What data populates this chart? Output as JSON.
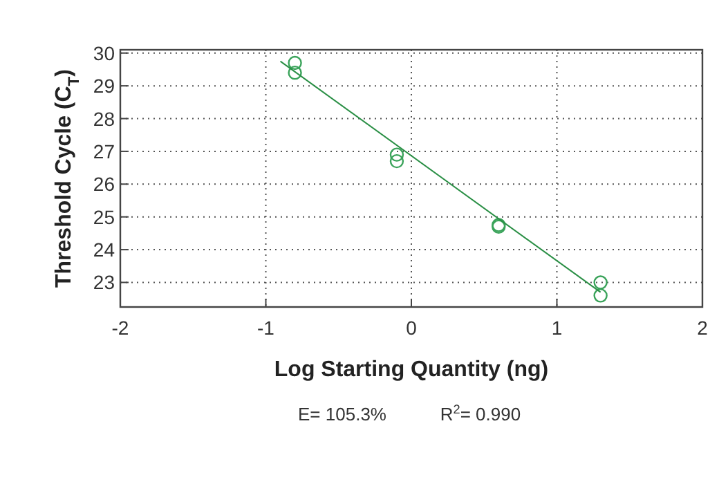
{
  "chart_data": {
    "type": "scatter",
    "xlabel": "Log Starting Quantity (ng)",
    "ylabel": "Threshold Cycle (C$_{T}$)",
    "x": [
      -0.8,
      -0.8,
      -0.1,
      -0.1,
      0.6,
      0.6,
      1.3,
      1.3
    ],
    "series": [
      {
        "color": "#3aa35a",
        "marker": "circle",
        "values": [
          29.7,
          29.4,
          26.9,
          26.7,
          24.75,
          24.7,
          23.0,
          22.6
        ]
      },
      {
        "type": "line",
        "color": "#2a8f45",
        "marker": "none",
        "x": [
          -0.9,
          1.3
        ],
        "values": [
          29.75,
          22.7
        ]
      }
    ],
    "xlim": [
      -2,
      2
    ],
    "xticks": [
      -2,
      -1,
      0,
      1,
      2
    ],
    "ylim": [
      22.25,
      30.1
    ],
    "yticks": [
      23,
      24,
      25,
      26,
      27,
      28,
      29,
      30
    ],
    "grid": true,
    "annotations": [
      "E= 105.3%",
      "R$^{2}$= 0.990"
    ]
  }
}
